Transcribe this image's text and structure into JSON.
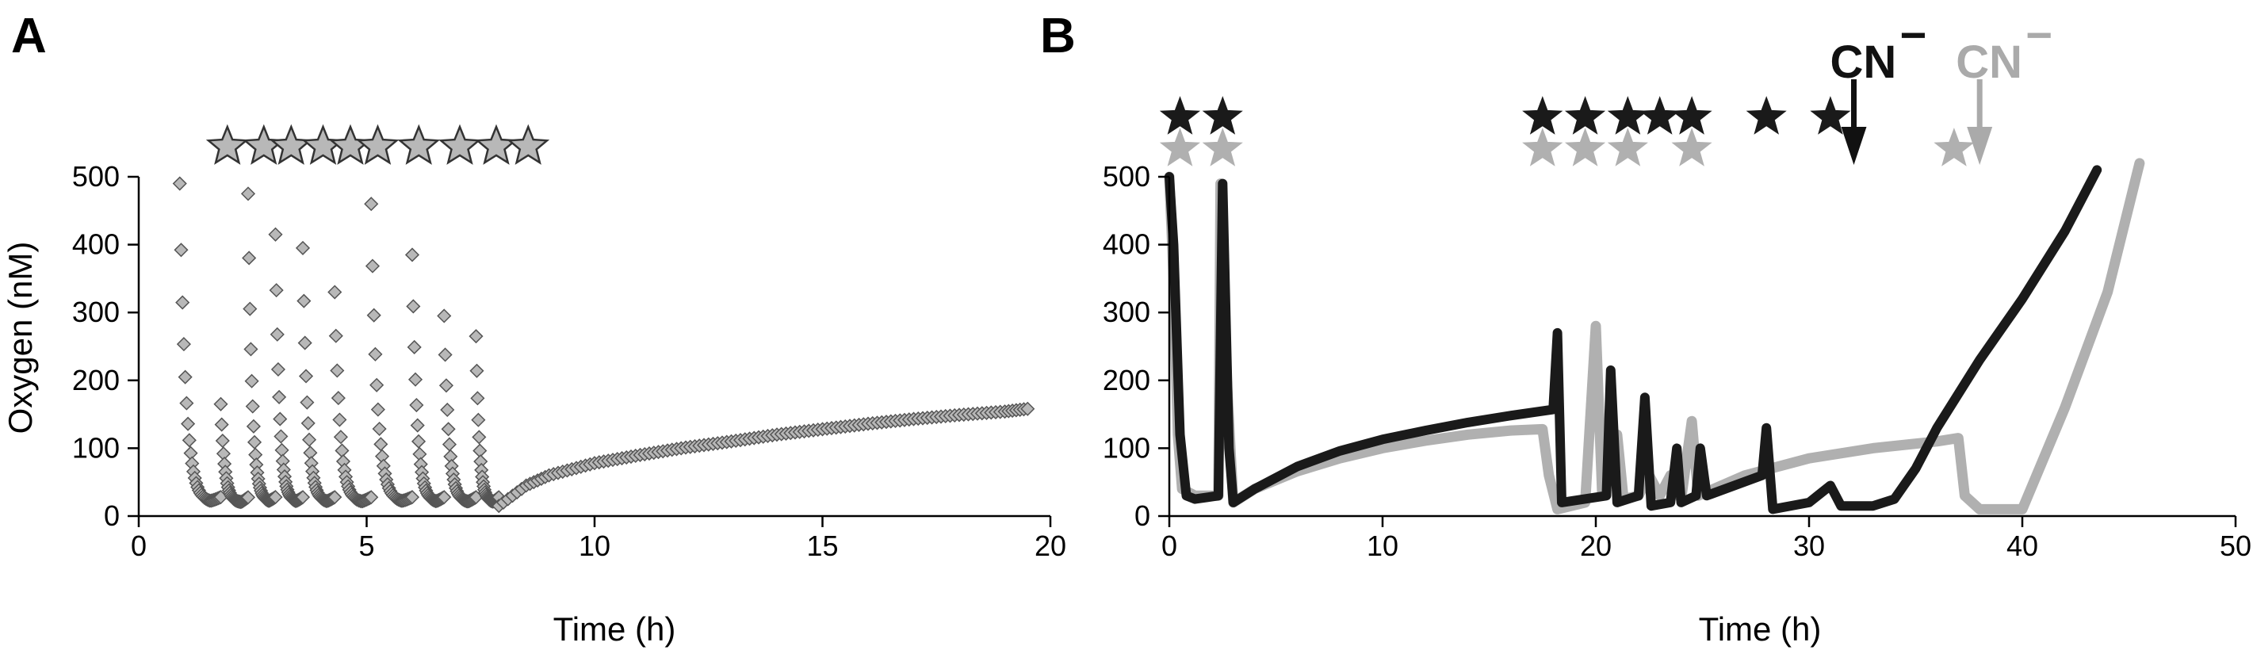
{
  "chart_data": [
    {
      "panel": "A",
      "type": "scatter",
      "xlabel": "Time (h)",
      "ylabel": "Oxygen (nM)",
      "xlim": [
        0,
        20
      ],
      "ylim": [
        0,
        500
      ],
      "xticks": [
        0,
        5,
        10,
        15,
        20
      ],
      "yticks": [
        0,
        100,
        200,
        300,
        400,
        500
      ],
      "grid": false,
      "marker": "diamond",
      "colors": {
        "fill": "#b8b8b8",
        "stroke": "#555555",
        "star_fill": "#b8b8b8",
        "star_stroke": "#333333"
      },
      "stars": [
        0.9,
        1.7,
        2.3,
        3.0,
        3.6,
        4.2,
        5.1,
        6.0,
        6.8,
        7.5
      ],
      "series": [
        {
          "cycles": [
            {
              "start": 0.9,
              "peak": 490
            },
            {
              "start": 1.8,
              "peak": 165
            },
            {
              "start": 2.4,
              "peak": 475
            },
            {
              "start": 3.0,
              "peak": 415
            },
            {
              "start": 3.6,
              "peak": 395
            },
            {
              "start": 4.3,
              "peak": 330
            },
            {
              "start": 5.1,
              "peak": 460
            },
            {
              "start": 6.0,
              "peak": 385
            },
            {
              "start": 6.7,
              "peak": 295
            },
            {
              "start": 7.4,
              "peak": 265
            }
          ],
          "trough": 20,
          "cycle_end": 7.9,
          "recovery": [
            [
              7.9,
              15
            ],
            [
              8.5,
              45
            ],
            [
              9.0,
              60
            ],
            [
              10.0,
              78
            ],
            [
              11.0,
              90
            ],
            [
              12.0,
              101
            ],
            [
              13.0,
              110
            ],
            [
              14.0,
              120
            ],
            [
              15.0,
              128
            ],
            [
              16.0,
              136
            ],
            [
              17.0,
              143
            ],
            [
              18.0,
              149
            ],
            [
              19.0,
              154
            ],
            [
              19.5,
              158
            ]
          ]
        }
      ]
    },
    {
      "panel": "B",
      "type": "line",
      "xlabel": "Time (h)",
      "ylabel": "",
      "xlim": [
        0,
        50
      ],
      "ylim": [
        0,
        500
      ],
      "xticks": [
        0,
        10,
        20,
        30,
        40,
        50
      ],
      "yticks": [
        0,
        100,
        200,
        300,
        400,
        500
      ],
      "grid": false,
      "annotations": [
        {
          "text": "CN",
          "sup": "−",
          "x": 32.1,
          "color": "#111111"
        },
        {
          "text": "CN",
          "sup": "−",
          "x": 38.0,
          "color": "#aaaaaa"
        }
      ],
      "stars_black": [
        0.5,
        2.5,
        17.5,
        19.5,
        21.5,
        23.0,
        24.5,
        28.0,
        31.0
      ],
      "stars_gray": [
        0.5,
        2.5,
        17.5,
        19.5,
        21.5,
        24.5,
        36.8
      ],
      "series": [
        {
          "color": "#b0b0b0",
          "points": [
            [
              0.0,
              500
            ],
            [
              0.2,
              350
            ],
            [
              0.4,
              120
            ],
            [
              0.6,
              40
            ],
            [
              1.2,
              30
            ],
            [
              2.3,
              30
            ],
            [
              2.4,
              490
            ],
            [
              2.7,
              200
            ],
            [
              3.0,
              20
            ],
            [
              4.0,
              40
            ],
            [
              6.0,
              66
            ],
            [
              8.0,
              85
            ],
            [
              10.0,
              100
            ],
            [
              12.0,
              111
            ],
            [
              14.0,
              120
            ],
            [
              16.0,
              126
            ],
            [
              17.5,
              128
            ],
            [
              17.8,
              60
            ],
            [
              18.2,
              10
            ],
            [
              19.5,
              20
            ],
            [
              20.0,
              280
            ],
            [
              20.3,
              30
            ],
            [
              21.0,
              120
            ],
            [
              21.3,
              25
            ],
            [
              22.0,
              30
            ],
            [
              22.5,
              60
            ],
            [
              23.0,
              30
            ],
            [
              23.5,
              60
            ],
            [
              24.0,
              25
            ],
            [
              24.5,
              140
            ],
            [
              24.8,
              30
            ],
            [
              27.0,
              60
            ],
            [
              30.0,
              85
            ],
            [
              33.0,
              100
            ],
            [
              36.0,
              110
            ],
            [
              37.0,
              115
            ],
            [
              37.3,
              30
            ],
            [
              38.0,
              10
            ],
            [
              40.0,
              10
            ],
            [
              42.0,
              160
            ],
            [
              44.0,
              330
            ],
            [
              45.5,
              520
            ]
          ]
        },
        {
          "color": "#1a1a1a",
          "points": [
            [
              0.0,
              500
            ],
            [
              0.2,
              400
            ],
            [
              0.5,
              120
            ],
            [
              0.8,
              30
            ],
            [
              1.2,
              25
            ],
            [
              2.3,
              30
            ],
            [
              2.5,
              490
            ],
            [
              2.8,
              100
            ],
            [
              3.0,
              20
            ],
            [
              4.0,
              40
            ],
            [
              6.0,
              73
            ],
            [
              8.0,
              96
            ],
            [
              10.0,
              113
            ],
            [
              12.0,
              126
            ],
            [
              14.0,
              138
            ],
            [
              16.0,
              148
            ],
            [
              18.0,
              157
            ],
            [
              18.2,
              270
            ],
            [
              18.4,
              20
            ],
            [
              20.5,
              30
            ],
            [
              20.7,
              215
            ],
            [
              21.0,
              20
            ],
            [
              22.0,
              30
            ],
            [
              22.3,
              175
            ],
            [
              22.6,
              15
            ],
            [
              23.5,
              20
            ],
            [
              23.8,
              100
            ],
            [
              24.0,
              20
            ],
            [
              24.7,
              30
            ],
            [
              24.9,
              100
            ],
            [
              25.2,
              30
            ],
            [
              27.8,
              60
            ],
            [
              28.0,
              130
            ],
            [
              28.3,
              10
            ],
            [
              30.0,
              20
            ],
            [
              31.0,
              45
            ],
            [
              31.5,
              15
            ],
            [
              33.0,
              15
            ],
            [
              34.0,
              25
            ],
            [
              35.0,
              70
            ],
            [
              36.0,
              130
            ],
            [
              38.0,
              230
            ],
            [
              40.0,
              320
            ],
            [
              42.0,
              420
            ],
            [
              43.5,
              510
            ]
          ]
        }
      ]
    }
  ],
  "panels": {
    "a": {
      "letter": "A"
    },
    "b": {
      "letter": "B"
    }
  }
}
